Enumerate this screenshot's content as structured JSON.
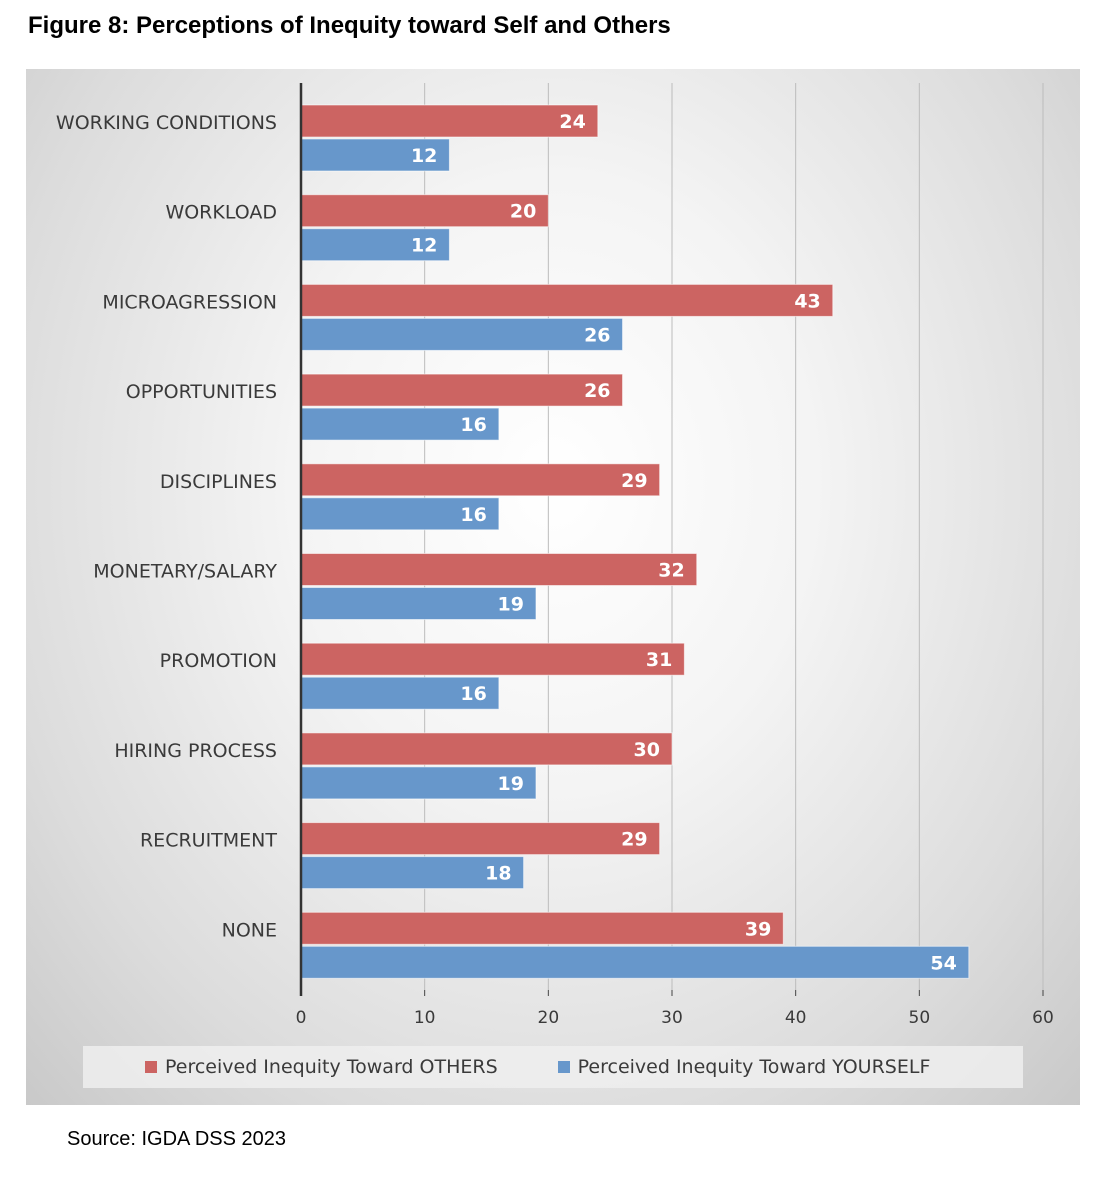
{
  "figure_title": "Figure 8: Perceptions of Inequity toward Self and Others",
  "source": "Source: IGDA DSS 2023",
  "colors": {
    "others": "#cc6462",
    "yourself": "#6797cb"
  },
  "chart_data": {
    "type": "bar",
    "orientation": "horizontal",
    "title": "",
    "xlabel": "",
    "ylabel": "",
    "xlim": [
      0,
      60
    ],
    "x_ticks": [
      "0",
      "10",
      "20",
      "30",
      "40",
      "50",
      "60"
    ],
    "grid": "vertical",
    "legend_position": "bottom",
    "categories": [
      "WORKING CONDITIONS",
      "WORKLOAD",
      "MICROAGRESSION",
      "OPPORTUNITIES",
      "DISCIPLINES",
      "MONETARY/SALARY",
      "PROMOTION",
      "HIRING PROCESS",
      "RECRUITMENT",
      "NONE"
    ],
    "series": [
      {
        "name": "Perceived Inequity Toward OTHERS",
        "values": [
          24,
          20,
          43,
          26,
          29,
          32,
          31,
          30,
          29,
          39
        ]
      },
      {
        "name": "Perceived Inequity Toward YOURSELF",
        "values": [
          12,
          12,
          26,
          16,
          16,
          19,
          16,
          19,
          18,
          54
        ]
      }
    ]
  }
}
